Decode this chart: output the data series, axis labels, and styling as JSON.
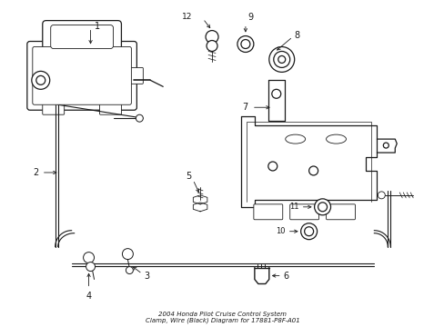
{
  "bg_color": "#ffffff",
  "line_color": "#1a1a1a",
  "fig_width": 4.89,
  "fig_height": 3.6,
  "dpi": 100,
  "title": "2004 Honda Pilot Cruise Control System\nClamp, Wire (Black) Diagram for 17881-P8F-A01"
}
